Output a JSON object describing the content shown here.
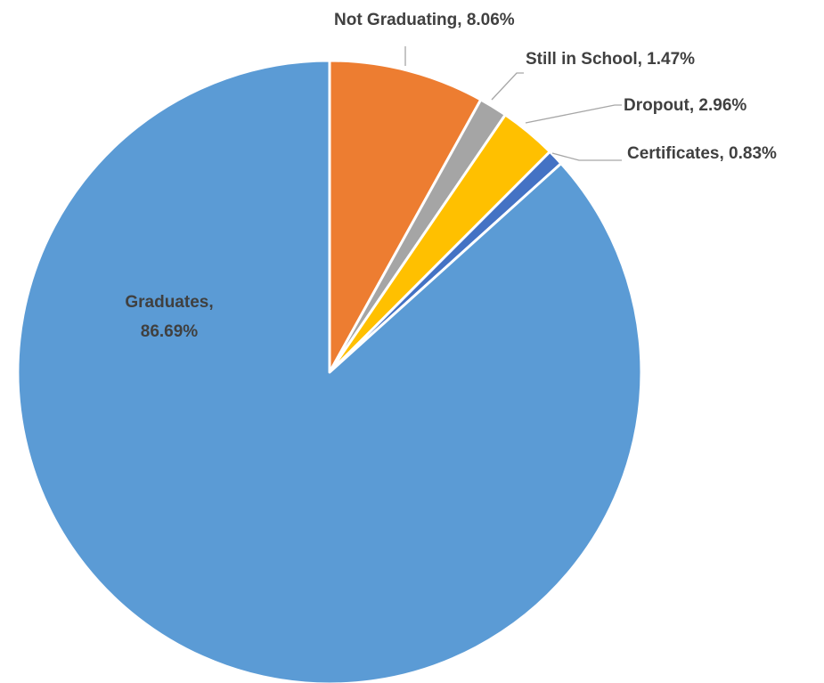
{
  "chart_data": {
    "type": "pie",
    "title": "",
    "slices": [
      {
        "name": "Not Graduating",
        "value": 8.06,
        "label": "8.06%",
        "color": "#ed7d31"
      },
      {
        "name": "Still in School",
        "value": 1.47,
        "label": "1.47%",
        "color": "#a5a5a5"
      },
      {
        "name": "Dropout",
        "value": 2.96,
        "label": "2.96%",
        "color": "#ffc000"
      },
      {
        "name": "Certificates",
        "value": 0.83,
        "label": "0.83%",
        "color": "#4472c4"
      },
      {
        "name": "Graduates",
        "value": 86.69,
        "label": "86.69%",
        "color": "#5b9bd5"
      }
    ],
    "legend": "none",
    "data_labels": "category-and-value"
  }
}
